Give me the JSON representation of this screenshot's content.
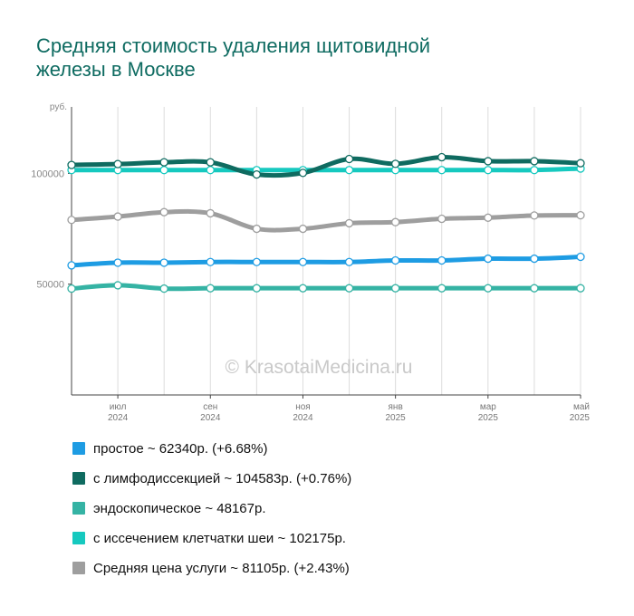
{
  "title_line1": "Средняя стоимость удаления щитовидной",
  "title_line2": "железы в Москве",
  "watermark": "© KrasotaiMedicina.ru",
  "chart_data": {
    "type": "line",
    "ylabel": "руб.",
    "ylim": [
      0,
      130000
    ],
    "yticks": [
      50000,
      100000
    ],
    "x": [
      "2024-06",
      "2024-07",
      "2024-08",
      "2024-09",
      "2024-10",
      "2024-11",
      "2024-12",
      "2025-01",
      "2025-02",
      "2025-03",
      "2025-04",
      "2025-05"
    ],
    "xtick_labels": [
      {
        "month": "июл",
        "year": "2024",
        "index": 1
      },
      {
        "month": "сен",
        "year": "2024",
        "index": 3
      },
      {
        "month": "ноя",
        "year": "2024",
        "index": 5
      },
      {
        "month": "янв",
        "year": "2025",
        "index": 7
      },
      {
        "month": "мар",
        "year": "2025",
        "index": 9
      },
      {
        "month": "май",
        "year": "2025",
        "index": 11
      }
    ],
    "series": [
      {
        "name": "с иссечением клетчатки шеи",
        "color": "#16c9bf",
        "values": [
          101500,
          101500,
          101500,
          101500,
          101500,
          101500,
          101500,
          101500,
          101500,
          101500,
          101500,
          102175
        ]
      },
      {
        "name": "с лимфодиссекцией",
        "color": "#0f6b60",
        "values": [
          103800,
          104200,
          105000,
          105000,
          99500,
          100200,
          106500,
          104300,
          107300,
          105500,
          105500,
          104583
        ]
      },
      {
        "name": "Средняя цена услуги",
        "color": "#9e9e9e",
        "values": [
          79000,
          80500,
          82500,
          82000,
          75000,
          75000,
          77500,
          78000,
          79500,
          80000,
          81000,
          81105
        ]
      },
      {
        "name": "простое",
        "color": "#1e9ce3",
        "values": [
          58500,
          59700,
          59700,
          60000,
          60000,
          60000,
          60000,
          60700,
          60700,
          61500,
          61500,
          62340
        ]
      },
      {
        "name": "эндоскопическое",
        "color": "#35b3a4",
        "values": [
          48000,
          49500,
          48000,
          48167,
          48167,
          48167,
          48167,
          48167,
          48167,
          48167,
          48167,
          48167
        ]
      }
    ]
  },
  "legend": [
    {
      "label": "простое ~ 62340р. (+6.68%)",
      "color": "#1e9ce3"
    },
    {
      "label": "с лимфодиссекцией ~ 104583р. (+0.76%)",
      "color": "#0f6b60"
    },
    {
      "label": "эндоскопическое ~ 48167р.",
      "color": "#35b3a4"
    },
    {
      "label": "с иссечением клетчатки шеи ~ 102175р.",
      "color": "#16c9bf"
    },
    {
      "label": "Средняя цена услуги ~ 81105р. (+2.43%)",
      "color": "#9e9e9e"
    }
  ]
}
